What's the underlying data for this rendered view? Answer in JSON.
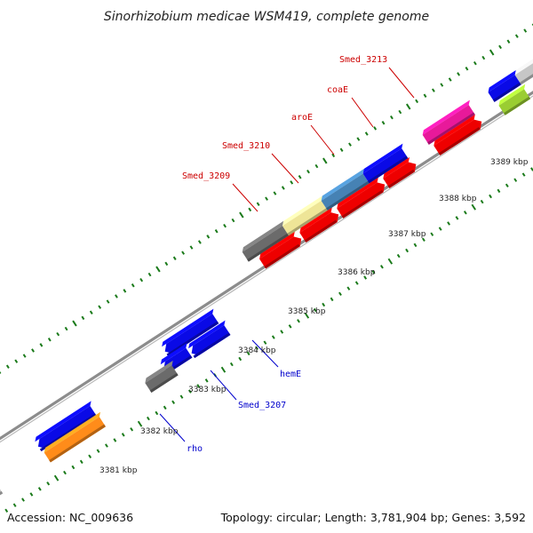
{
  "title": "Sinorhizobium medicae WSM419, complete genome",
  "footer": {
    "accession": "Accession: NC_009636",
    "summary": "Topology: circular; Length: 3,781,904 bp; Genes: 3,592"
  },
  "colors": {
    "backbone": "#8c8c8c",
    "tick": "#1a7a1a",
    "forward_label": "#cc0000",
    "reverse_label": "#0000cc"
  },
  "kbp_labels": [
    "3381 kbp",
    "3382 kbp",
    "3383 kbp",
    "3384 kbp",
    "3385 kbp",
    "3386 kbp",
    "3387 kbp",
    "3388 kbp",
    "3389 kbp"
  ],
  "gene_labels": [
    {
      "text": "Smed_3213",
      "strand": "forward"
    },
    {
      "text": "coaE",
      "strand": "forward"
    },
    {
      "text": "aroE",
      "strand": "forward"
    },
    {
      "text": "Smed_3210",
      "strand": "forward"
    },
    {
      "text": "Smed_3209",
      "strand": "forward"
    },
    {
      "text": "hemE",
      "strand": "reverse"
    },
    {
      "text": "Smed_3207",
      "strand": "reverse"
    },
    {
      "text": "rho",
      "strand": "reverse"
    }
  ],
  "features": [
    {
      "name": "magenta-gene",
      "color": "#e8199a"
    },
    {
      "name": "red-gene",
      "color": "#ee0000"
    },
    {
      "name": "blue-gene",
      "color": "#0a0ae6"
    },
    {
      "name": "steelblue-gene",
      "color": "#4682b4"
    },
    {
      "name": "khaki-gene",
      "color": "#eee597"
    },
    {
      "name": "gray-gene",
      "color": "#6b6b6b"
    },
    {
      "name": "lightgray-gene",
      "color": "#c6c6c6"
    },
    {
      "name": "orange-gene",
      "color": "#ff8c1a"
    },
    {
      "name": "lime-gene",
      "color": "#9acd32"
    }
  ]
}
